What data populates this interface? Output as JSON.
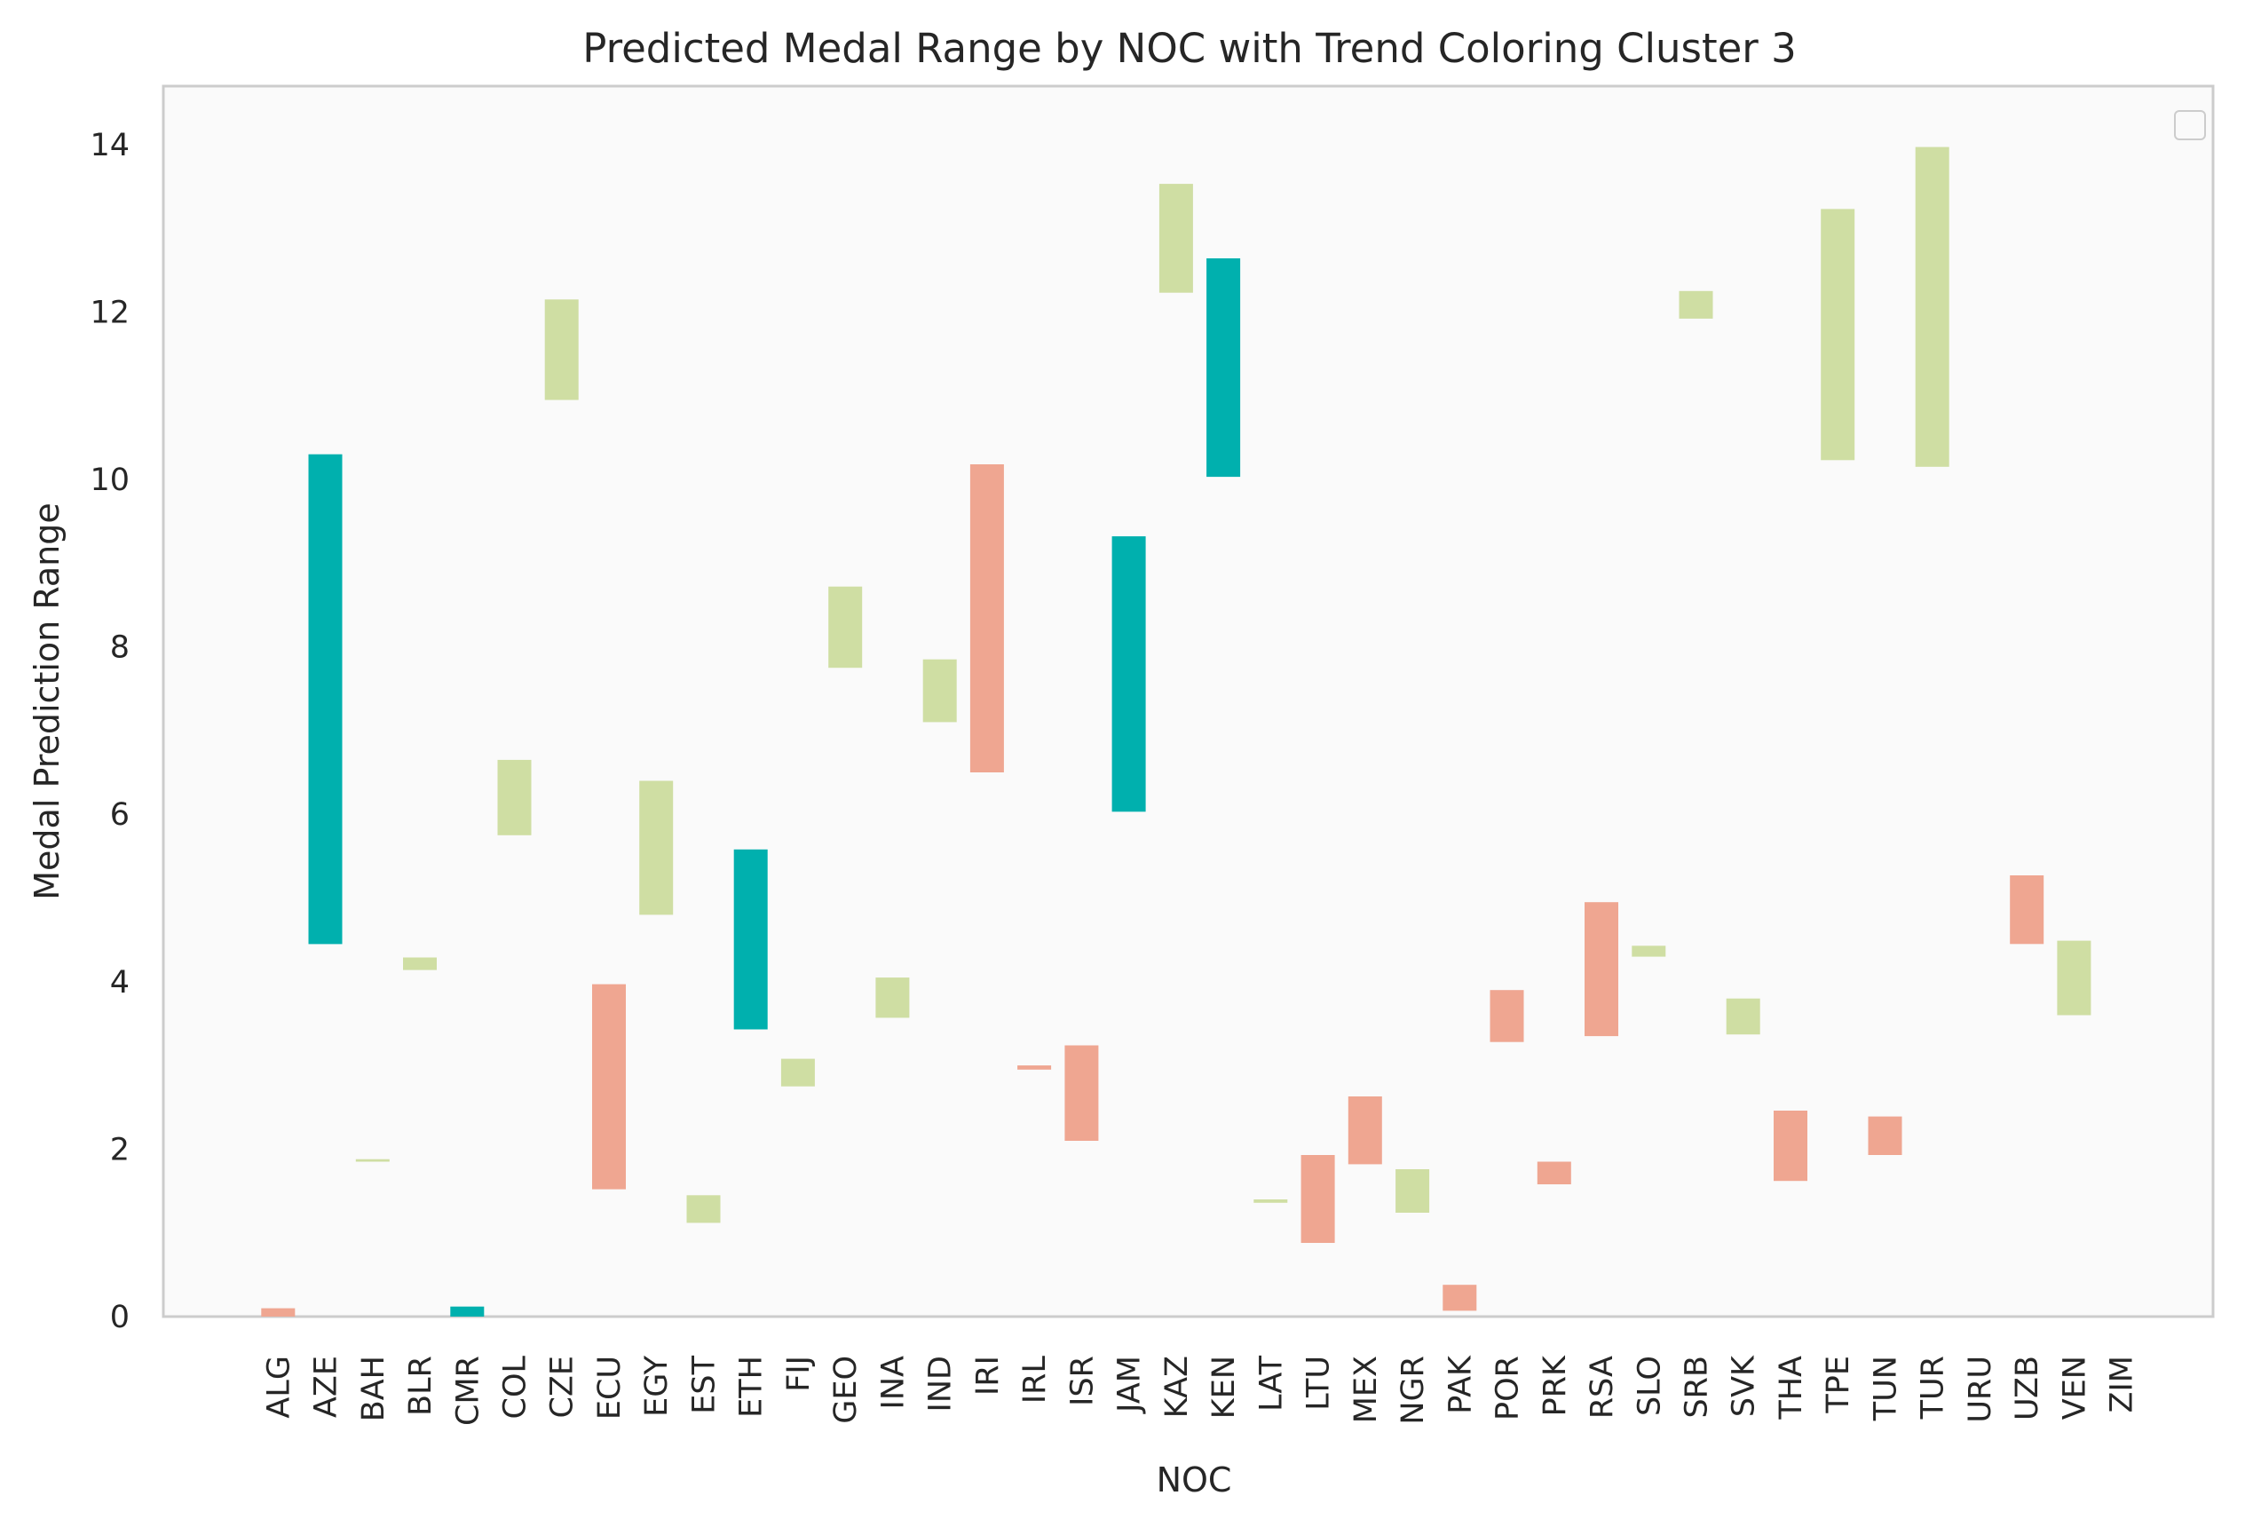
{
  "chart_data": {
    "type": "bar",
    "title": "Predicted Medal Range by NOC with Trend Coloring Cluster 3",
    "xlabel": "NOC",
    "ylabel": "Medal Prediction Range",
    "ylim": [
      0,
      14.7
    ],
    "yticks": [
      0,
      2,
      4,
      6,
      8,
      10,
      12,
      14
    ],
    "grid": false,
    "legend": "top-right (empty)",
    "colors": {
      "up": "#cfdea3",
      "down": "#efa691",
      "teal": "#00b0ae",
      "plot_bg": "#fafafa",
      "frame": "#cccccc"
    },
    "categories": [
      "ALG",
      "AZE",
      "BAH",
      "BLR",
      "CMR",
      "COL",
      "CZE",
      "ECU",
      "EGY",
      "EST",
      "ETH",
      "FIJ",
      "GEO",
      "INA",
      "IND",
      "IRI",
      "IRL",
      "ISR",
      "JAM",
      "KAZ",
      "KEN",
      "LAT",
      "LTU",
      "MEX",
      "NGR",
      "PAK",
      "POR",
      "PRK",
      "RSA",
      "SLO",
      "SRB",
      "SVK",
      "THA",
      "TPE",
      "TUN",
      "TUR",
      "URU",
      "UZB",
      "VEN",
      "ZIM"
    ],
    "ranges": [
      {
        "noc": "ALG",
        "low": 0.0,
        "high": 0.1,
        "trend": "down"
      },
      {
        "noc": "AZE",
        "low": 4.45,
        "high": 10.3,
        "trend": "teal"
      },
      {
        "noc": "BAH",
        "low": 1.85,
        "high": 1.88,
        "trend": "up"
      },
      {
        "noc": "BLR",
        "low": 4.14,
        "high": 4.29,
        "trend": "up"
      },
      {
        "noc": "CMR",
        "low": 0.0,
        "high": 0.12,
        "trend": "teal"
      },
      {
        "noc": "COL",
        "low": 5.75,
        "high": 6.65,
        "trend": "up"
      },
      {
        "noc": "CZE",
        "low": 10.95,
        "high": 12.15,
        "trend": "up"
      },
      {
        "noc": "ECU",
        "low": 1.52,
        "high": 3.97,
        "trend": "down"
      },
      {
        "noc": "EGY",
        "low": 4.8,
        "high": 6.4,
        "trend": "up"
      },
      {
        "noc": "EST",
        "low": 1.12,
        "high": 1.45,
        "trend": "up"
      },
      {
        "noc": "ETH",
        "low": 3.43,
        "high": 5.58,
        "trend": "teal"
      },
      {
        "noc": "FIJ",
        "low": 2.75,
        "high": 3.08,
        "trend": "up"
      },
      {
        "noc": "GEO",
        "low": 7.75,
        "high": 8.72,
        "trend": "up"
      },
      {
        "noc": "INA",
        "low": 3.57,
        "high": 4.05,
        "trend": "up"
      },
      {
        "noc": "IND",
        "low": 7.1,
        "high": 7.85,
        "trend": "up"
      },
      {
        "noc": "IRI",
        "low": 6.5,
        "high": 10.18,
        "trend": "down"
      },
      {
        "noc": "IRL",
        "low": 2.95,
        "high": 3.0,
        "trend": "down"
      },
      {
        "noc": "ISR",
        "low": 2.1,
        "high": 3.24,
        "trend": "down"
      },
      {
        "noc": "JAM",
        "low": 6.03,
        "high": 9.32,
        "trend": "teal"
      },
      {
        "noc": "KAZ",
        "low": 12.23,
        "high": 13.53,
        "trend": "up"
      },
      {
        "noc": "KEN",
        "low": 10.03,
        "high": 12.64,
        "trend": "teal"
      },
      {
        "noc": "LAT",
        "low": 1.36,
        "high": 1.4,
        "trend": "up"
      },
      {
        "noc": "LTU",
        "low": 0.88,
        "high": 1.93,
        "trend": "down"
      },
      {
        "noc": "MEX",
        "low": 1.82,
        "high": 2.63,
        "trend": "down"
      },
      {
        "noc": "NGR",
        "low": 1.24,
        "high": 1.76,
        "trend": "up"
      },
      {
        "noc": "PAK",
        "low": 0.07,
        "high": 0.38,
        "trend": "down"
      },
      {
        "noc": "POR",
        "low": 3.28,
        "high": 3.9,
        "trend": "down"
      },
      {
        "noc": "PRK",
        "low": 1.58,
        "high": 1.85,
        "trend": "down"
      },
      {
        "noc": "RSA",
        "low": 3.35,
        "high": 4.95,
        "trend": "down"
      },
      {
        "noc": "SLO",
        "low": 4.3,
        "high": 4.43,
        "trend": "up"
      },
      {
        "noc": "SRB",
        "low": 11.92,
        "high": 12.25,
        "trend": "up"
      },
      {
        "noc": "SVK",
        "low": 3.37,
        "high": 3.8,
        "trend": "up"
      },
      {
        "noc": "THA",
        "low": 1.62,
        "high": 2.46,
        "trend": "down"
      },
      {
        "noc": "TPE",
        "low": 10.23,
        "high": 13.23,
        "trend": "up"
      },
      {
        "noc": "TUN",
        "low": 1.93,
        "high": 2.39,
        "trend": "down"
      },
      {
        "noc": "TUR",
        "low": 10.15,
        "high": 13.97,
        "trend": "up"
      },
      {
        "noc": "URU",
        "low": null,
        "high": null,
        "trend": "none"
      },
      {
        "noc": "UZB",
        "low": 4.45,
        "high": 5.27,
        "trend": "down"
      },
      {
        "noc": "VEN",
        "low": 3.6,
        "high": 4.49,
        "trend": "up"
      },
      {
        "noc": "ZIM",
        "low": null,
        "high": null,
        "trend": "none"
      }
    ]
  }
}
